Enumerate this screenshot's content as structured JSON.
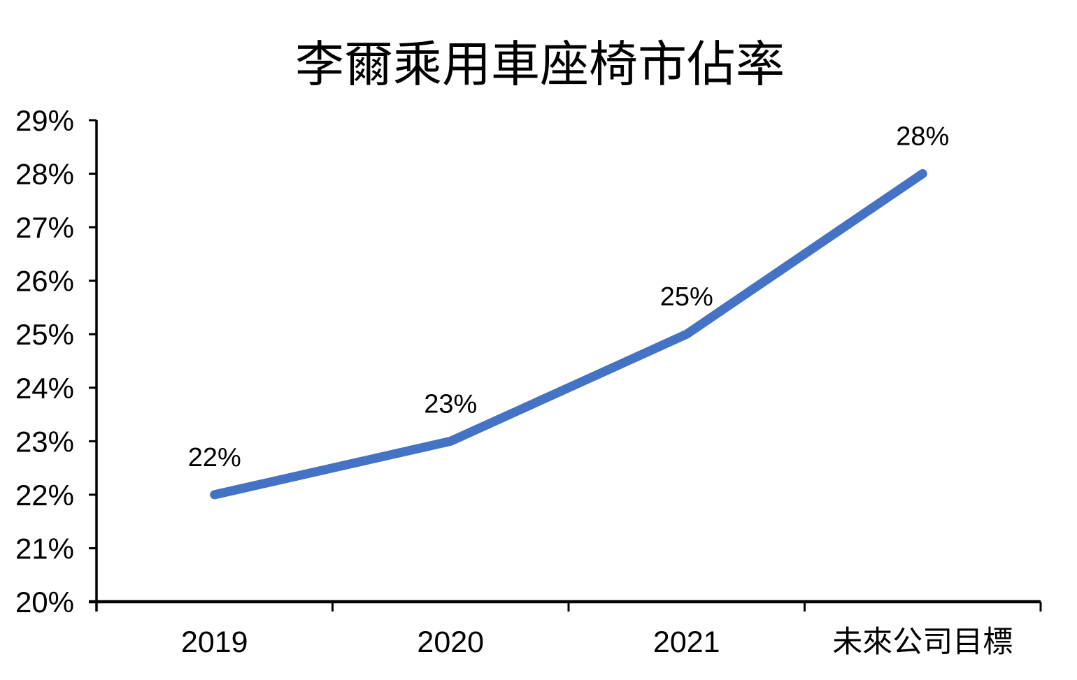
{
  "page": {
    "background_color": "#ffffff"
  },
  "chart_data": {
    "type": "line",
    "title": "李爾乘用車座椅市佔率",
    "categories": [
      "2019",
      "2020",
      "2021",
      "未來公司目標"
    ],
    "series": [
      {
        "name": "市佔率",
        "values": [
          22,
          23,
          25,
          28
        ],
        "data_labels": [
          "22%",
          "23%",
          "25%",
          "28%"
        ],
        "color": "#4472C4"
      }
    ],
    "xlabel": "",
    "ylabel": "",
    "ylim": [
      20,
      29
    ],
    "y_tick_step": 1,
    "y_ticks": [
      20,
      21,
      22,
      23,
      24,
      25,
      26,
      27,
      28,
      29
    ],
    "y_tick_labels": [
      "20%",
      "21%",
      "22%",
      "23%",
      "24%",
      "25%",
      "26%",
      "27%",
      "28%",
      "29%"
    ],
    "grid": false,
    "legend": false,
    "data_label_position": "above",
    "axis_color": "#000000",
    "text_color": "#000000"
  }
}
